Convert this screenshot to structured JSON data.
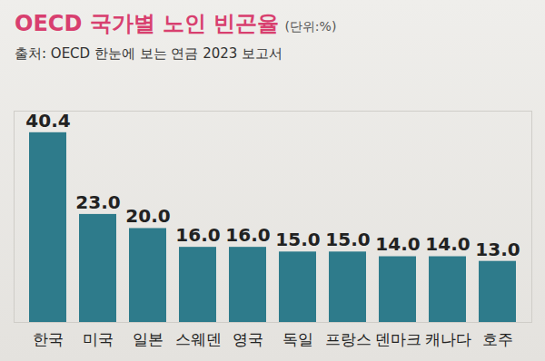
{
  "chart_data": {
    "type": "bar",
    "title": "OECD 국가별 노인 빈곤율",
    "unit": "(단위:%)",
    "source": "출처: OECD 한눈에 보는 연금 2023 보고서",
    "categories": [
      "한국",
      "미국",
      "일본",
      "스웨덴",
      "영국",
      "독일",
      "프랑스",
      "덴마크",
      "캐나다",
      "호주"
    ],
    "values": [
      40.4,
      23.0,
      20.0,
      16.0,
      16.0,
      15.0,
      15.0,
      14.0,
      14.0,
      13.0
    ],
    "value_labels": [
      "40.4",
      "23.0",
      "20.0",
      "16.0",
      "16.0",
      "15.0",
      "15.0",
      "14.0",
      "14.0",
      "13.0"
    ],
    "color": "#2e7b8b",
    "ylim": [
      0,
      45
    ],
    "grid": false,
    "data_labels": true,
    "tick_labels": "x"
  }
}
